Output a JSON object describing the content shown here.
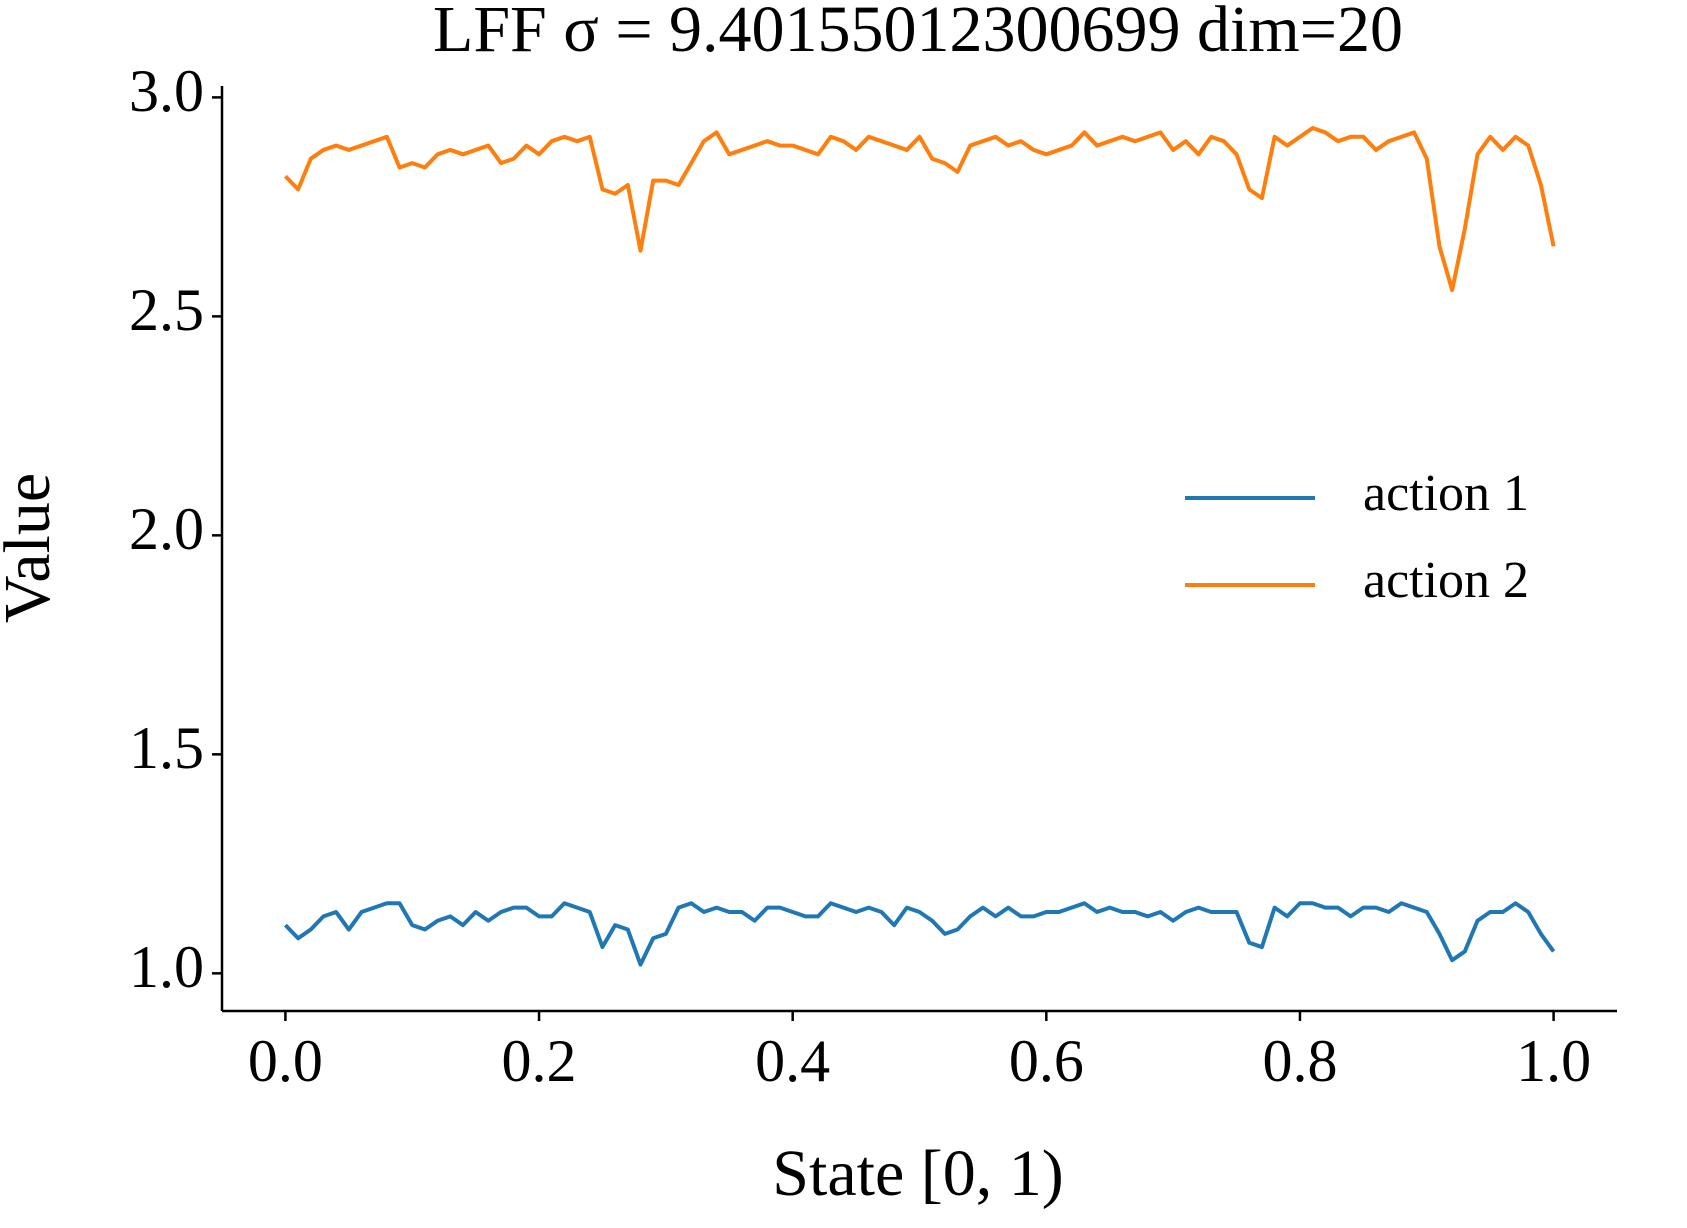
{
  "chart_data": {
    "type": "line",
    "title": "LFF σ = 9.40155012300699 dim=20",
    "x_label": "State [0, 1)",
    "y_label": "Value",
    "x": [
      0,
      0.01,
      0.02,
      0.03,
      0.04,
      0.05,
      0.06,
      0.07,
      0.08,
      0.09,
      0.1,
      0.11,
      0.12,
      0.13,
      0.14,
      0.15,
      0.16,
      0.17,
      0.18,
      0.19,
      0.2,
      0.21,
      0.22,
      0.23,
      0.24,
      0.25,
      0.26,
      0.27,
      0.28,
      0.29,
      0.3,
      0.31,
      0.32,
      0.33,
      0.34,
      0.35,
      0.36,
      0.37,
      0.38,
      0.39,
      0.4,
      0.41,
      0.42,
      0.43,
      0.44,
      0.45,
      0.46,
      0.47,
      0.48,
      0.49,
      0.5,
      0.51,
      0.52,
      0.53,
      0.54,
      0.55,
      0.56,
      0.57,
      0.58,
      0.59,
      0.6,
      0.61,
      0.62,
      0.63,
      0.64,
      0.65,
      0.66,
      0.67,
      0.68,
      0.69,
      0.7,
      0.71,
      0.72,
      0.73,
      0.74,
      0.75,
      0.76,
      0.77,
      0.78,
      0.79,
      0.8,
      0.81,
      0.82,
      0.83,
      0.84,
      0.85,
      0.86,
      0.87,
      0.88,
      0.89,
      0.9,
      0.91,
      0.92,
      0.93,
      0.94,
      0.95,
      0.96,
      0.97,
      0.98,
      0.99,
      1
    ],
    "series": [
      {
        "name": "action 1",
        "color": "#1f77b4",
        "values": [
          1.11,
          1.08,
          1.1,
          1.13,
          1.14,
          1.1,
          1.14,
          1.15,
          1.16,
          1.16,
          1.11,
          1.1,
          1.12,
          1.13,
          1.11,
          1.14,
          1.12,
          1.14,
          1.15,
          1.15,
          1.13,
          1.13,
          1.16,
          1.15,
          1.14,
          1.06,
          1.11,
          1.1,
          1.02,
          1.08,
          1.09,
          1.15,
          1.16,
          1.14,
          1.15,
          1.14,
          1.14,
          1.12,
          1.15,
          1.15,
          1.14,
          1.13,
          1.13,
          1.16,
          1.15,
          1.14,
          1.15,
          1.14,
          1.11,
          1.15,
          1.14,
          1.12,
          1.09,
          1.1,
          1.13,
          1.15,
          1.13,
          1.15,
          1.13,
          1.13,
          1.14,
          1.14,
          1.15,
          1.16,
          1.14,
          1.15,
          1.14,
          1.14,
          1.13,
          1.14,
          1.12,
          1.14,
          1.15,
          1.14,
          1.14,
          1.14,
          1.07,
          1.06,
          1.15,
          1.13,
          1.16,
          1.16,
          1.15,
          1.15,
          1.13,
          1.15,
          1.15,
          1.14,
          1.16,
          1.15,
          1.14,
          1.09,
          1.03,
          1.05,
          1.12,
          1.14,
          1.14,
          1.16,
          1.14,
          1.09,
          1.05
        ]
      },
      {
        "name": "action 2",
        "color": "#ff7f0e",
        "values": [
          2.82,
          2.79,
          2.86,
          2.88,
          2.89,
          2.88,
          2.89,
          2.9,
          2.91,
          2.84,
          2.85,
          2.84,
          2.87,
          2.88,
          2.87,
          2.88,
          2.89,
          2.85,
          2.86,
          2.89,
          2.87,
          2.9,
          2.91,
          2.9,
          2.91,
          2.79,
          2.78,
          2.8,
          2.65,
          2.81,
          2.81,
          2.8,
          2.85,
          2.9,
          2.92,
          2.87,
          2.88,
          2.89,
          2.9,
          2.89,
          2.89,
          2.88,
          2.87,
          2.91,
          2.9,
          2.88,
          2.91,
          2.9,
          2.89,
          2.88,
          2.91,
          2.86,
          2.85,
          2.83,
          2.89,
          2.9,
          2.91,
          2.89,
          2.9,
          2.88,
          2.87,
          2.88,
          2.89,
          2.92,
          2.89,
          2.9,
          2.91,
          2.9,
          2.91,
          2.92,
          2.88,
          2.9,
          2.87,
          2.91,
          2.9,
          2.87,
          2.79,
          2.77,
          2.91,
          2.89,
          2.91,
          2.93,
          2.92,
          2.9,
          2.91,
          2.91,
          2.88,
          2.9,
          2.91,
          2.92,
          2.86,
          2.66,
          2.56,
          2.7,
          2.87,
          2.91,
          2.88,
          2.91,
          2.89,
          2.8,
          2.66
        ]
      }
    ],
    "xlim": [
      -0.05,
      1.05
    ],
    "ylim": [
      0.914,
      3.026
    ],
    "xticks": [
      {
        "value": 0,
        "label": "0.0"
      },
      0.2,
      0.4,
      0.6,
      0.8,
      {
        "value": 1,
        "label": "1.0"
      }
    ],
    "yticks": [
      {
        "value": 1,
        "label": "1.0"
      },
      1.5,
      {
        "value": 2,
        "label": "2.0"
      },
      2.5,
      {
        "value": 3,
        "label": "3.0"
      }
    ],
    "grid": false,
    "legend": "center right"
  }
}
